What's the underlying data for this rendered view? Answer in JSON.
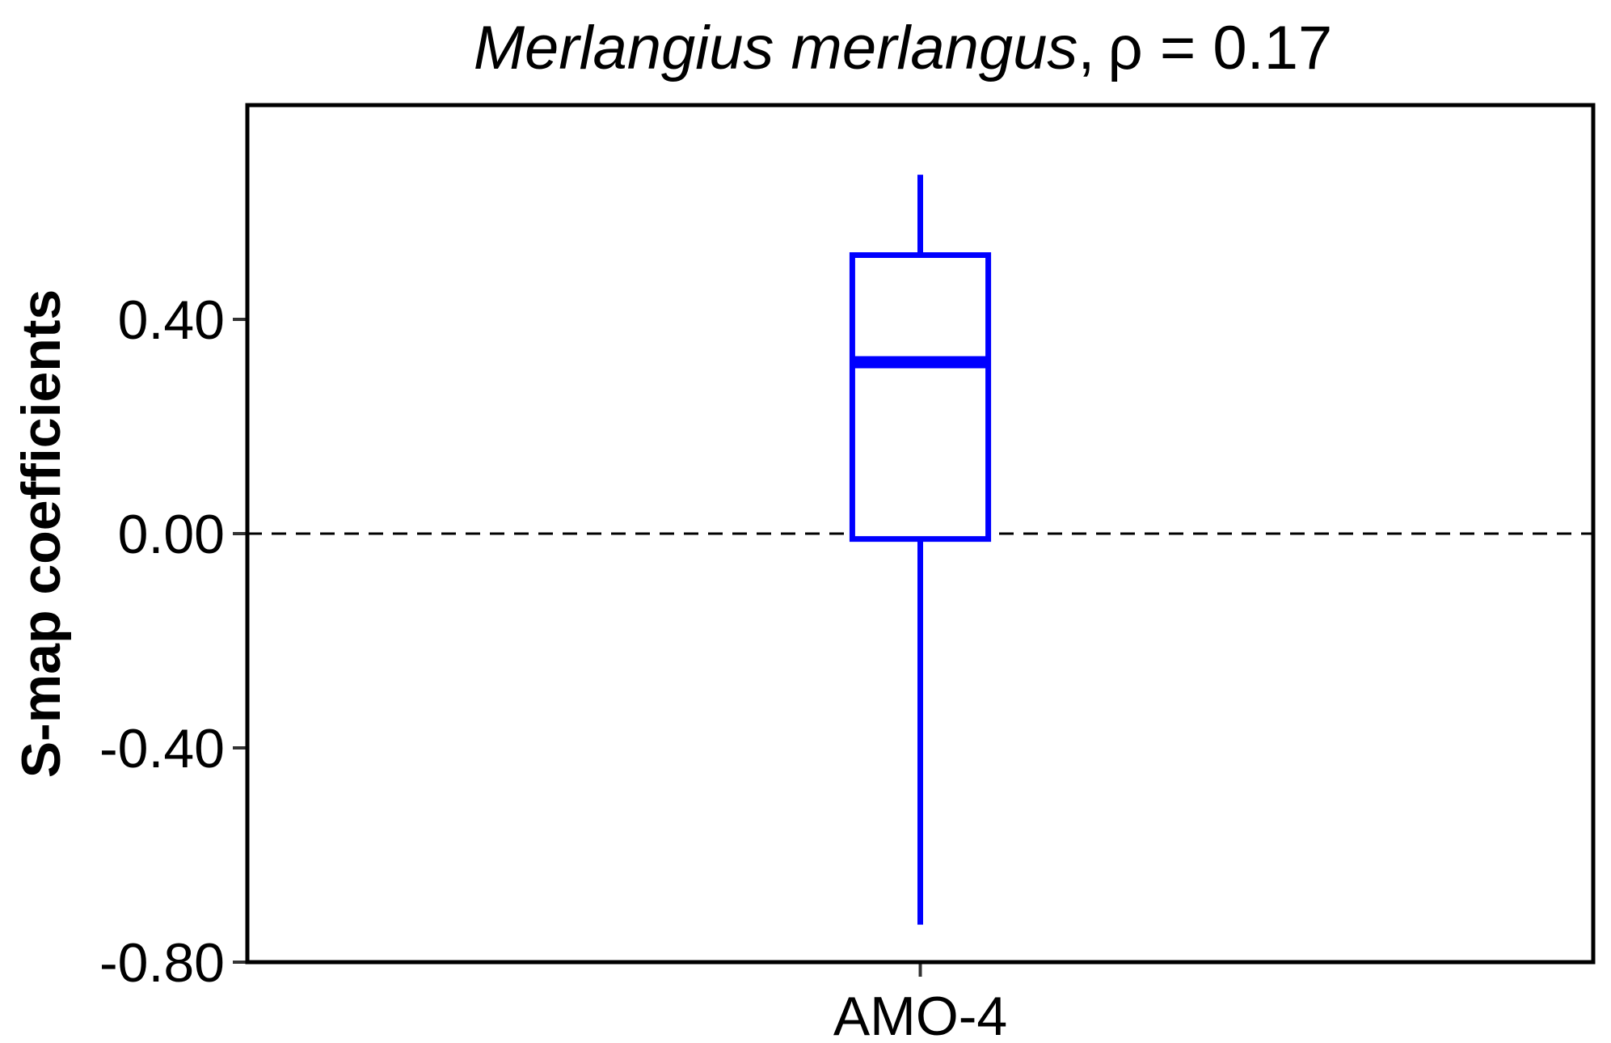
{
  "chart_data": {
    "type": "box",
    "title": {
      "species": "Merlangius merlangus",
      "separator": ",",
      "stat": "ρ = 0.17"
    },
    "xlabel": "",
    "ylabel": "S-map coefficients",
    "categories": [
      "AMO-4"
    ],
    "ylim": [
      -0.8,
      0.8
    ],
    "yticks": [
      -0.8,
      -0.4,
      0.0,
      0.4
    ],
    "ytick_labels": [
      "-0.80",
      "-0.40",
      "0.00",
      "0.40"
    ],
    "reference_line": {
      "y": 0.0,
      "style": "dashed",
      "color": "#000000"
    },
    "series": [
      {
        "category": "AMO-4",
        "whisker_low": -0.73,
        "q1": -0.01,
        "median": 0.32,
        "q3": 0.52,
        "whisker_high": 0.67,
        "color": "#0000ff"
      }
    ],
    "grid": false,
    "legend": "none"
  }
}
